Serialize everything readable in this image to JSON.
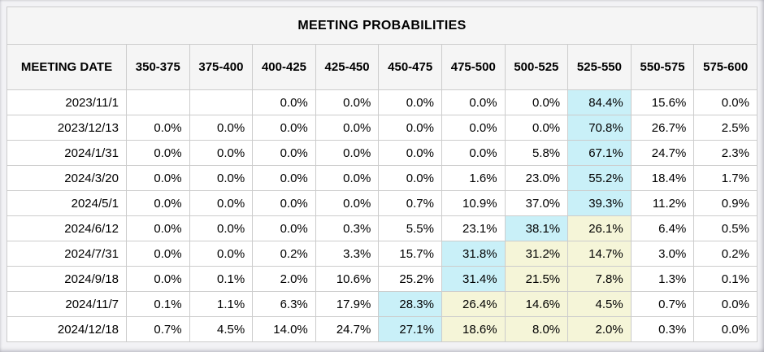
{
  "chart_data": {
    "type": "table",
    "title": "MEETING PROBABILITIES",
    "columns": [
      "MEETING DATE",
      "350-375",
      "375-400",
      "400-425",
      "425-450",
      "450-475",
      "475-500",
      "500-525",
      "525-550",
      "550-575",
      "575-600"
    ],
    "rows": [
      {
        "date": "2023/11/1",
        "values": [
          "",
          "",
          "0.0%",
          "0.0%",
          "0.0%",
          "0.0%",
          "0.0%",
          "84.4%",
          "15.6%",
          "0.0%"
        ],
        "highlights": [
          "",
          "",
          "",
          "",
          "",
          "",
          "",
          "max",
          "",
          ""
        ]
      },
      {
        "date": "2023/12/13",
        "values": [
          "0.0%",
          "0.0%",
          "0.0%",
          "0.0%",
          "0.0%",
          "0.0%",
          "0.0%",
          "70.8%",
          "26.7%",
          "2.5%"
        ],
        "highlights": [
          "",
          "",
          "",
          "",
          "",
          "",
          "",
          "max",
          "",
          ""
        ]
      },
      {
        "date": "2024/1/31",
        "values": [
          "0.0%",
          "0.0%",
          "0.0%",
          "0.0%",
          "0.0%",
          "0.0%",
          "5.8%",
          "67.1%",
          "24.7%",
          "2.3%"
        ],
        "highlights": [
          "",
          "",
          "",
          "",
          "",
          "",
          "",
          "max",
          "",
          ""
        ]
      },
      {
        "date": "2024/3/20",
        "values": [
          "0.0%",
          "0.0%",
          "0.0%",
          "0.0%",
          "0.0%",
          "1.6%",
          "23.0%",
          "55.2%",
          "18.4%",
          "1.7%"
        ],
        "highlights": [
          "",
          "",
          "",
          "",
          "",
          "",
          "",
          "max",
          "",
          ""
        ]
      },
      {
        "date": "2024/5/1",
        "values": [
          "0.0%",
          "0.0%",
          "0.0%",
          "0.0%",
          "0.7%",
          "10.9%",
          "37.0%",
          "39.3%",
          "11.2%",
          "0.9%"
        ],
        "highlights": [
          "",
          "",
          "",
          "",
          "",
          "",
          "",
          "max",
          "",
          ""
        ]
      },
      {
        "date": "2024/6/12",
        "values": [
          "0.0%",
          "0.0%",
          "0.0%",
          "0.3%",
          "5.5%",
          "23.1%",
          "38.1%",
          "26.1%",
          "6.4%",
          "0.5%"
        ],
        "highlights": [
          "",
          "",
          "",
          "",
          "",
          "",
          "max",
          "range",
          "",
          ""
        ]
      },
      {
        "date": "2024/7/31",
        "values": [
          "0.0%",
          "0.0%",
          "0.2%",
          "3.3%",
          "15.7%",
          "31.8%",
          "31.2%",
          "14.7%",
          "3.0%",
          "0.2%"
        ],
        "highlights": [
          "",
          "",
          "",
          "",
          "",
          "max",
          "range",
          "range",
          "",
          ""
        ]
      },
      {
        "date": "2024/9/18",
        "values": [
          "0.0%",
          "0.1%",
          "2.0%",
          "10.6%",
          "25.2%",
          "31.4%",
          "21.5%",
          "7.8%",
          "1.3%",
          "0.1%"
        ],
        "highlights": [
          "",
          "",
          "",
          "",
          "",
          "max",
          "range",
          "range",
          "",
          ""
        ]
      },
      {
        "date": "2024/11/7",
        "values": [
          "0.1%",
          "1.1%",
          "6.3%",
          "17.9%",
          "28.3%",
          "26.4%",
          "14.6%",
          "4.5%",
          "0.7%",
          "0.0%"
        ],
        "highlights": [
          "",
          "",
          "",
          "",
          "max",
          "range",
          "range",
          "range",
          "",
          ""
        ]
      },
      {
        "date": "2024/12/18",
        "values": [
          "0.7%",
          "4.5%",
          "14.0%",
          "24.7%",
          "27.1%",
          "18.6%",
          "8.0%",
          "2.0%",
          "0.3%",
          "0.0%"
        ],
        "highlights": [
          "",
          "",
          "",
          "",
          "max",
          "range",
          "range",
          "range",
          "",
          ""
        ]
      }
    ],
    "colors": {
      "max_highlight": "#c9f0f8",
      "range_highlight": "#f5f5d8",
      "header_background": "#f5f5f5",
      "border": "#cccccc"
    }
  }
}
